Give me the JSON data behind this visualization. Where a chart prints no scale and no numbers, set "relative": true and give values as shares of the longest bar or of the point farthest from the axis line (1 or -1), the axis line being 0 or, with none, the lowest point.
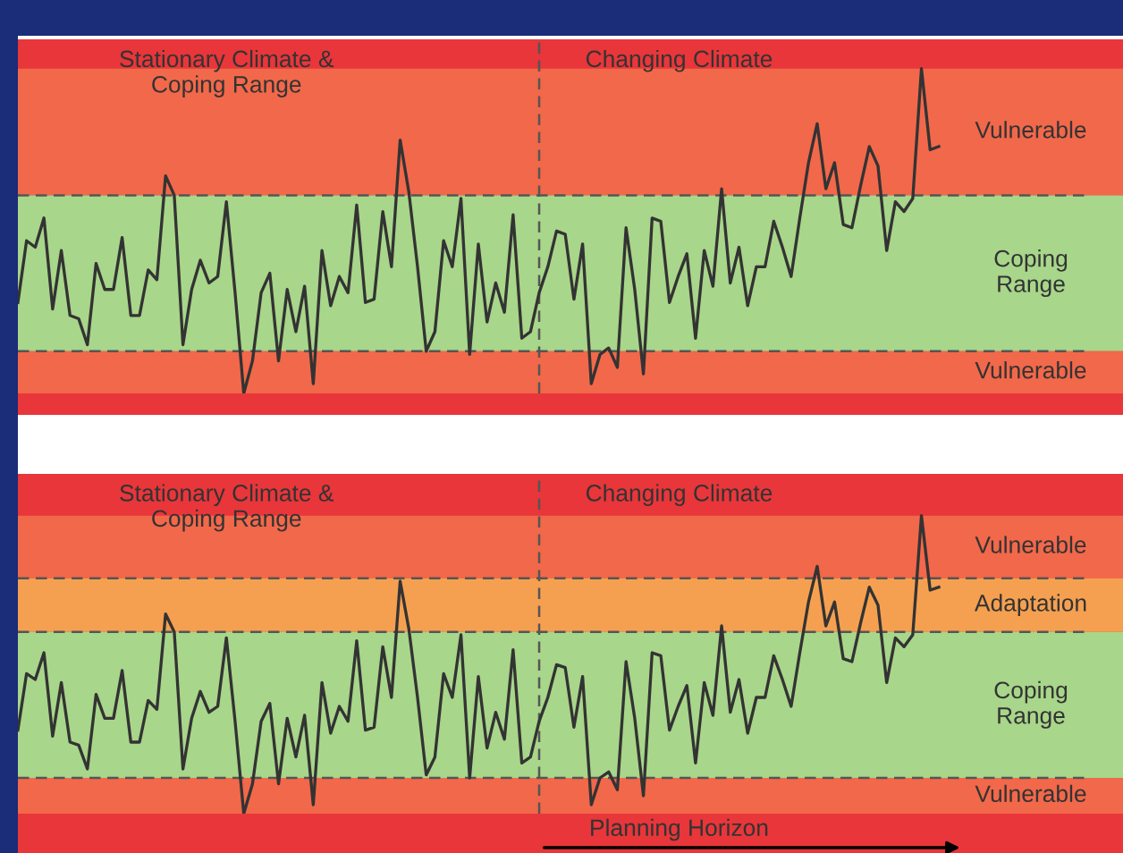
{
  "chart_data": [
    {
      "type": "line",
      "relative": true,
      "categories": [
        null,
        null,
        null,
        null,
        null,
        null,
        null,
        null,
        null,
        null,
        null,
        null,
        null,
        null,
        null,
        null,
        null,
        null,
        null,
        null,
        null,
        null,
        null,
        null,
        null,
        null,
        null,
        null,
        null,
        null,
        null,
        null,
        null,
        null,
        null,
        null,
        null,
        null,
        null,
        null,
        null,
        null,
        null,
        null,
        null,
        null,
        null,
        null,
        null,
        null,
        null,
        null,
        null,
        null,
        null,
        null,
        null,
        null,
        null,
        null,
        null,
        null,
        null,
        null,
        null,
        null,
        null,
        null,
        null,
        null,
        null,
        null,
        null,
        null,
        null,
        null,
        null,
        null,
        null,
        null,
        null,
        null,
        null,
        null,
        null,
        null,
        null,
        null,
        null,
        null,
        null,
        null,
        null,
        null,
        null,
        null,
        null,
        null,
        null,
        null,
        null,
        null,
        null,
        null,
        null,
        null,
        null
      ],
      "series": [
        {
          "color": "#333333",
          "values": [
            0.28,
            0.47,
            0.45,
            0.54,
            0.26,
            0.44,
            0.24,
            0.23,
            0.15,
            0.4,
            0.32,
            0.32,
            0.48,
            0.24,
            0.24,
            0.38,
            0.35,
            0.67,
            0.61,
            0.15,
            0.32,
            0.41,
            0.34,
            0.36,
            0.59,
            0.31,
            0,
            0.1,
            0.31,
            0.37,
            0.1,
            0.32,
            0.19,
            0.33,
            0.03,
            0.44,
            0.27,
            0.36,
            0.31,
            0.58,
            0.28,
            0.29,
            0.56,
            0.39,
            0.78,
            0.62,
            0.39,
            0.13,
            0.19,
            0.47,
            0.39,
            0.6,
            0.12,
            0.46,
            0.22,
            0.34,
            0.25,
            0.55,
            0.17,
            0.19,
            0.31,
            0.39,
            0.5,
            0.49,
            0.29,
            0.46,
            0.03,
            0.12,
            0.14,
            0.08,
            0.51,
            0.32,
            0.06,
            0.54,
            0.53,
            0.28,
            0.36,
            0.43,
            0.17,
            0.44,
            0.33,
            0.63,
            0.34,
            0.45,
            0.27,
            0.39,
            0.39,
            0.53,
            0.45,
            0.36,
            0.54,
            0.71,
            0.83,
            0.63,
            0.71,
            0.52,
            0.51,
            0.64,
            0.76,
            0.7,
            0.44,
            0.59,
            0.56,
            0.6,
            1,
            0.75,
            0.76
          ]
        }
      ],
      "ref_lines": [
        {
          "axis": "y",
          "value": 0.61,
          "line_style": "dashed",
          "color": "#555555"
        },
        {
          "axis": "y",
          "value": 0.13,
          "line_style": "dashed",
          "color": "#555555"
        }
      ],
      "bands": [
        {
          "axis": "y",
          "from": 0.61,
          "to": 1,
          "label": "Vulnerable",
          "color": "#f2684a"
        },
        {
          "axis": "y",
          "from": 0.13,
          "to": 0.61,
          "label": "Coping\nRange",
          "color": "#a8d68a"
        },
        {
          "axis": "y",
          "from": 0,
          "to": 0.13,
          "label": "Vulnerable",
          "color": "#f2684a"
        }
      ],
      "annotations": [
        "Stationary Climate &\nCoping Range",
        "Changing Climate"
      ]
    },
    {
      "type": "line",
      "relative": true,
      "categories": [
        null,
        null,
        null,
        null,
        null,
        null,
        null,
        null,
        null,
        null,
        null,
        null,
        null,
        null,
        null,
        null,
        null,
        null,
        null,
        null,
        null,
        null,
        null,
        null,
        null,
        null,
        null,
        null,
        null,
        null,
        null,
        null,
        null,
        null,
        null,
        null,
        null,
        null,
        null,
        null,
        null,
        null,
        null,
        null,
        null,
        null,
        null,
        null,
        null,
        null,
        null,
        null,
        null,
        null,
        null,
        null,
        null,
        null,
        null,
        null,
        null,
        null,
        null,
        null,
        null,
        null,
        null,
        null,
        null,
        null,
        null,
        null,
        null,
        null,
        null,
        null,
        null,
        null,
        null,
        null,
        null,
        null,
        null,
        null,
        null,
        null,
        null,
        null,
        null,
        null,
        null,
        null,
        null,
        null,
        null,
        null,
        null,
        null,
        null,
        null,
        null,
        null,
        null,
        null,
        null,
        null,
        null
      ],
      "series": [
        {
          "color": "#333333",
          "values": [
            0.28,
            0.47,
            0.45,
            0.54,
            0.26,
            0.44,
            0.24,
            0.23,
            0.15,
            0.4,
            0.32,
            0.32,
            0.48,
            0.24,
            0.24,
            0.38,
            0.35,
            0.67,
            0.61,
            0.15,
            0.32,
            0.41,
            0.34,
            0.36,
            0.59,
            0.31,
            0,
            0.1,
            0.31,
            0.37,
            0.1,
            0.32,
            0.19,
            0.33,
            0.03,
            0.44,
            0.27,
            0.36,
            0.31,
            0.58,
            0.28,
            0.29,
            0.56,
            0.39,
            0.78,
            0.62,
            0.39,
            0.13,
            0.19,
            0.47,
            0.39,
            0.6,
            0.12,
            0.46,
            0.22,
            0.34,
            0.25,
            0.55,
            0.17,
            0.19,
            0.31,
            0.39,
            0.5,
            0.49,
            0.29,
            0.46,
            0.03,
            0.12,
            0.14,
            0.08,
            0.51,
            0.32,
            0.06,
            0.54,
            0.53,
            0.28,
            0.36,
            0.43,
            0.17,
            0.44,
            0.33,
            0.63,
            0.34,
            0.45,
            0.27,
            0.39,
            0.39,
            0.53,
            0.45,
            0.36,
            0.54,
            0.71,
            0.83,
            0.63,
            0.71,
            0.52,
            0.51,
            0.64,
            0.76,
            0.7,
            0.44,
            0.59,
            0.56,
            0.6,
            1,
            0.75,
            0.76
          ]
        }
      ],
      "ref_lines": [
        {
          "axis": "y",
          "value": 0.79,
          "line_style": "dashed",
          "color": "#555555"
        },
        {
          "axis": "y",
          "value": 0.61,
          "line_style": "dashed",
          "color": "#555555"
        },
        {
          "axis": "y",
          "value": 0.12,
          "line_style": "dashed",
          "color": "#555555"
        }
      ],
      "bands": [
        {
          "axis": "y",
          "from": 0.79,
          "to": 1,
          "label": "Vulnerable",
          "color": "#f2684a"
        },
        {
          "axis": "y",
          "from": 0.61,
          "to": 0.79,
          "label": "Adaptation",
          "color": "#f5a050"
        },
        {
          "axis": "y",
          "from": 0.12,
          "to": 0.61,
          "label": "Coping\nRange",
          "color": "#a8d68a"
        },
        {
          "axis": "y",
          "from": 0,
          "to": 0.12,
          "label": "Vulnerable",
          "color": "#f2684a"
        }
      ],
      "annotations": [
        "Stationary Climate &\nCoping Range",
        "Changing Climate",
        "Planning Horizon"
      ]
    }
  ]
}
